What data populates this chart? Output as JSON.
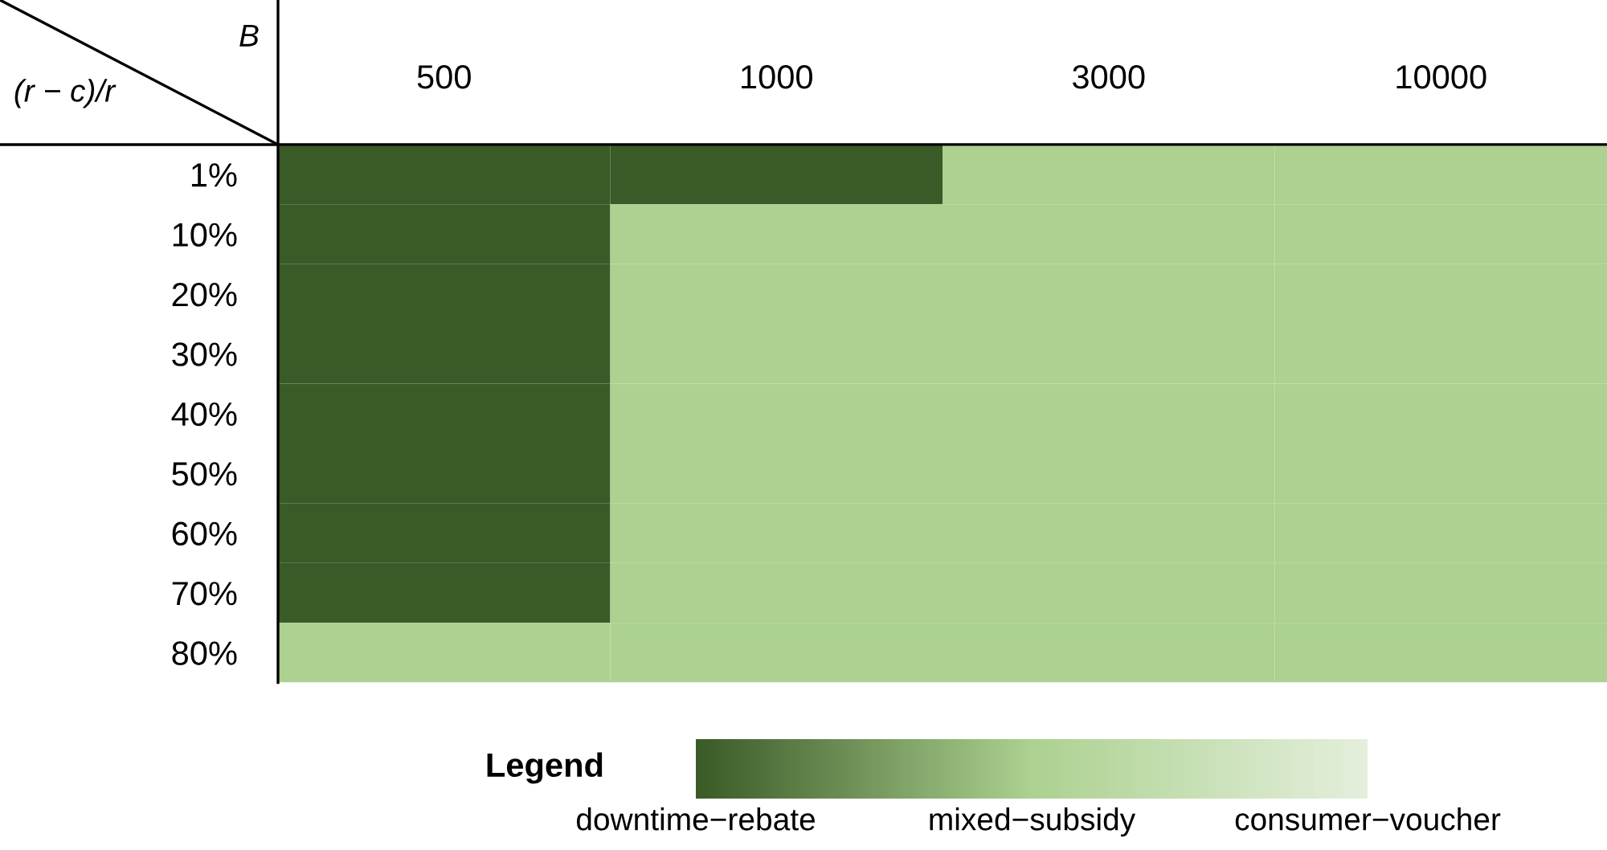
{
  "chart_data": {
    "type": "heatmap",
    "xlabel": "B",
    "ylabel": "(r − c)/r",
    "clabel": "Legend",
    "categories": [
      "500",
      "1000",
      "3000",
      "10000"
    ],
    "y_categories": [
      "1%",
      "10%",
      "20%",
      "30%",
      "40%",
      "50%",
      "60%",
      "70%",
      "80%"
    ],
    "cells": [
      [
        1,
        1,
        2,
        2
      ],
      [
        1,
        2,
        2,
        2
      ],
      [
        1,
        2,
        2,
        2
      ],
      [
        1,
        2,
        2,
        2
      ],
      [
        1,
        2,
        2,
        2
      ],
      [
        1,
        2,
        2,
        2
      ],
      [
        1,
        2,
        2,
        2
      ],
      [
        1,
        2,
        2,
        2
      ],
      [
        2,
        2,
        2,
        2
      ]
    ],
    "colors": [
      "#3a5a27",
      "#acd190",
      "#e4efdc"
    ],
    "clim": [
      1,
      3
    ],
    "cticks": [
      {
        "value": 1,
        "label": "downtime−rebate"
      },
      {
        "value": 2,
        "label": "mixed−subsidy"
      },
      {
        "value": 3,
        "label": "consumer−voucher"
      }
    ]
  }
}
